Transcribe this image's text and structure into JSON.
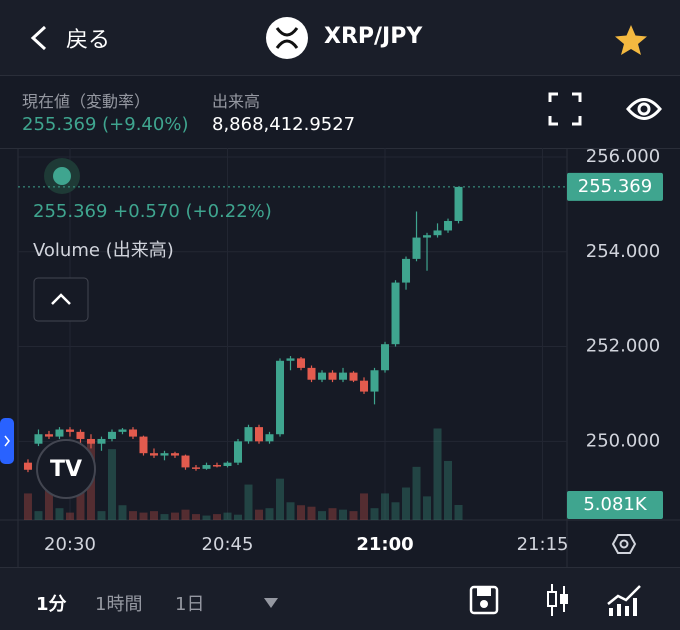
{
  "header": {
    "back": "戻る",
    "title": "XRP/JPY"
  },
  "stats": {
    "price_label": "現在値（変動率）",
    "price": "255.369 (+9.40%)",
    "volume_label": "出来高",
    "volume": "8,868,412.9527"
  },
  "legend": {
    "quote": "255.369 +0.570 (+0.22%)",
    "volume": "Volume (出来高)"
  },
  "toolbar": {
    "intervals": [
      "1分",
      "1時間",
      "1日"
    ]
  },
  "chart_data": {
    "type": "candlestick",
    "up_color": "#3fa58f",
    "down_color": "#e35b4e",
    "grid": true,
    "x": [
      1226,
      1227,
      1228,
      1229,
      1230,
      1231,
      1232,
      1233,
      1234,
      1235,
      1236,
      1237,
      1238,
      1239,
      1240,
      1241,
      1242,
      1243,
      1244,
      1245,
      1246,
      1247,
      1248,
      1249,
      1250,
      1251,
      1252,
      1253,
      1254,
      1255,
      1256,
      1257,
      1258,
      1259,
      1260,
      1261,
      1262,
      1263,
      1264,
      1265,
      1266,
      1267
    ],
    "open": [
      249.55,
      249.95,
      250.15,
      250.1,
      250.25,
      250.2,
      250.05,
      249.95,
      250.05,
      250.2,
      250.25,
      250.1,
      249.75,
      249.7,
      249.75,
      249.7,
      249.45,
      249.42,
      249.5,
      249.48,
      249.55,
      250.0,
      250.3,
      250.0,
      250.15,
      251.7,
      251.75,
      251.55,
      251.3,
      251.45,
      251.3,
      251.45,
      251.28,
      251.05,
      251.5,
      252.05,
      253.35,
      253.85,
      254.3,
      254.35,
      254.45,
      254.65
    ],
    "high": [
      249.62,
      250.25,
      250.22,
      250.3,
      250.3,
      250.25,
      250.15,
      250.1,
      250.25,
      250.28,
      250.3,
      250.12,
      249.85,
      249.8,
      249.78,
      249.72,
      249.5,
      249.55,
      249.55,
      249.58,
      250.05,
      250.35,
      250.35,
      250.2,
      251.75,
      251.8,
      251.78,
      251.6,
      251.5,
      251.5,
      251.55,
      251.48,
      251.35,
      251.55,
      252.1,
      253.4,
      253.9,
      254.85,
      254.4,
      254.6,
      254.7,
      255.369
    ],
    "low": [
      249.35,
      249.9,
      250.05,
      250.05,
      250.1,
      249.95,
      249.85,
      249.8,
      250.0,
      250.15,
      250.05,
      249.7,
      249.65,
      249.6,
      249.65,
      249.4,
      249.38,
      249.4,
      249.45,
      249.45,
      249.5,
      249.95,
      249.95,
      249.95,
      250.1,
      251.5,
      251.5,
      251.25,
      251.25,
      251.25,
      251.25,
      251.25,
      251.0,
      250.78,
      251.45,
      252.0,
      253.2,
      253.8,
      253.6,
      254.3,
      254.4,
      254.6
    ],
    "close": [
      249.4,
      250.15,
      250.1,
      250.25,
      250.2,
      250.05,
      249.95,
      250.05,
      250.2,
      250.25,
      250.1,
      249.75,
      249.7,
      249.75,
      249.7,
      249.45,
      249.42,
      249.5,
      249.48,
      249.55,
      250.0,
      250.3,
      250.0,
      250.15,
      251.7,
      251.75,
      251.55,
      251.3,
      251.45,
      251.3,
      251.45,
      251.28,
      251.05,
      251.5,
      252.05,
      253.35,
      253.85,
      254.3,
      254.35,
      254.45,
      254.65,
      255.369
    ],
    "volume": {
      "values": [
        9000,
        3000,
        12000,
        4000,
        2500,
        22000,
        27000,
        3000,
        24000,
        5000,
        3000,
        2500,
        3000,
        2000,
        2500,
        3500,
        2000,
        1500,
        2000,
        2500,
        1800,
        12000,
        3500,
        4000,
        14000,
        6000,
        5000,
        4500,
        3000,
        4000,
        3500,
        3000,
        9000,
        4000,
        9000,
        6000,
        11000,
        18000,
        8000,
        31000,
        20000,
        5081
      ],
      "last_label": "5.081K"
    },
    "xlim": [
      1225.05,
      1277.33
    ],
    "xticks": [
      {
        "value": 1230,
        "label": "20:30"
      },
      {
        "value": 1245,
        "label": "20:45"
      },
      {
        "value": 1260,
        "label": "21:00"
      },
      {
        "value": 1275,
        "label": "21:15"
      }
    ],
    "ylim": [
      248.34,
      256.19
    ],
    "yticks": [
      {
        "value": 256,
        "label": "256.000"
      },
      {
        "value": 254,
        "label": "254.000"
      },
      {
        "value": 252,
        "label": "252.000"
      },
      {
        "value": 250,
        "label": "250.000"
      }
    ],
    "y2lim": [
      0,
      126000
    ]
  }
}
